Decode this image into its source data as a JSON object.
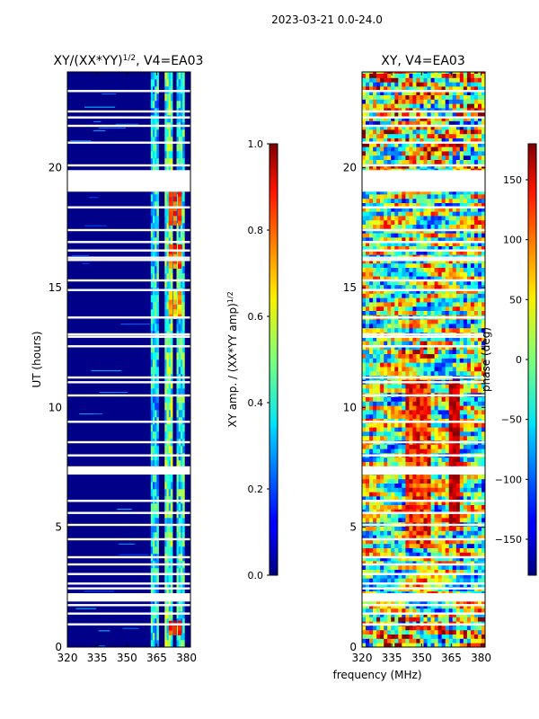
{
  "figure": {
    "suptitle": "2023-03-21 0.0-24.0",
    "shared_xlabel": "frequency (MHz)"
  },
  "chart_data": [
    {
      "type": "heatmap",
      "title": "XY/(XX*YY)",
      "title_exponent": "1/2",
      "title_suffix": ", V4=EA03",
      "xlabel": "",
      "ylabel": "UT (hours)",
      "xlim": [
        320,
        382
      ],
      "ylim": [
        0,
        24
      ],
      "xticks": [
        320,
        335,
        350,
        365,
        380
      ],
      "yticks": [
        0,
        5,
        10,
        15,
        20
      ],
      "background_color": "#00007f",
      "data_gaps_hours": [
        0.95,
        1.4,
        1.75,
        2.1,
        2.45,
        2.65,
        3.05,
        3.45,
        3.75,
        4.5,
        5.1,
        5.6,
        6.1,
        7.35,
        7.5,
        8.0,
        8.55,
        9.4,
        10.5,
        11.05,
        11.25,
        12.55,
        12.95,
        13.05,
        13.75,
        14.9,
        15.3,
        16.15,
        16.25,
        16.55,
        16.9,
        17.4,
        18.35,
        19.5,
        20.1,
        21.05,
        21.75,
        22.1,
        22.35,
        23.2
      ],
      "large_gaps_hours": [
        [
          7.2,
          7.5
        ],
        [
          19.0,
          19.9
        ],
        [
          1.9,
          2.25
        ]
      ],
      "bright_bands_mhz": [
        {
          "start": 362,
          "end": 366,
          "level": 0.35
        },
        {
          "start": 369,
          "end": 373,
          "level": 0.45
        },
        {
          "start": 375,
          "end": 379,
          "level": 0.4
        }
      ],
      "hotspots": [
        {
          "freq_start": 371,
          "freq_end": 378,
          "hours": [
            0.5,
            1.0
          ],
          "level": 0.85
        },
        {
          "freq_start": 371,
          "freq_end": 378,
          "hours": [
            15.8,
            16.6
          ],
          "level": 0.8
        },
        {
          "freq_start": 371,
          "freq_end": 378,
          "hours": [
            17.6,
            19.0
          ],
          "level": 0.8
        },
        {
          "freq_start": 371,
          "freq_end": 378,
          "hours": [
            13.7,
            14.8
          ],
          "level": 0.7
        }
      ],
      "colorbar": {
        "label": "XY amp. / (XX*YY amp)",
        "label_exponent": "1/2",
        "range": [
          0.0,
          1.0
        ],
        "ticks": [
          "0.0",
          "0.2",
          "0.4",
          "0.6",
          "0.8",
          "1.0"
        ]
      }
    },
    {
      "type": "heatmap",
      "title": "XY, V4=EA03",
      "xlabel": "frequency (MHz)",
      "ylabel": "",
      "xlim": [
        320,
        382
      ],
      "ylim": [
        0,
        24
      ],
      "xticks": [
        320,
        335,
        350,
        365,
        380
      ],
      "yticks": [
        0,
        5,
        10,
        15,
        20
      ],
      "data_gaps_hours": [
        0.95,
        1.4,
        1.75,
        2.1,
        2.45,
        2.65,
        3.05,
        3.45,
        3.75,
        4.5,
        5.1,
        5.6,
        6.1,
        7.35,
        7.5,
        8.0,
        8.55,
        9.4,
        10.5,
        11.05,
        11.25,
        12.55,
        12.95,
        13.05,
        13.75,
        14.9,
        15.3,
        16.15,
        16.25,
        16.55,
        16.9,
        17.4,
        18.35,
        19.5,
        20.1,
        21.05,
        21.75,
        22.1,
        22.35,
        23.2
      ],
      "large_gaps_hours": [
        [
          7.2,
          7.5
        ],
        [
          19.0,
          19.9
        ],
        [
          1.9,
          2.25
        ]
      ],
      "colorbar": {
        "label": "phase (deg)",
        "range": [
          -180,
          180
        ],
        "ticks": [
          "−150",
          "−100",
          "−50",
          "0",
          "50",
          "100",
          "150"
        ]
      }
    }
  ]
}
